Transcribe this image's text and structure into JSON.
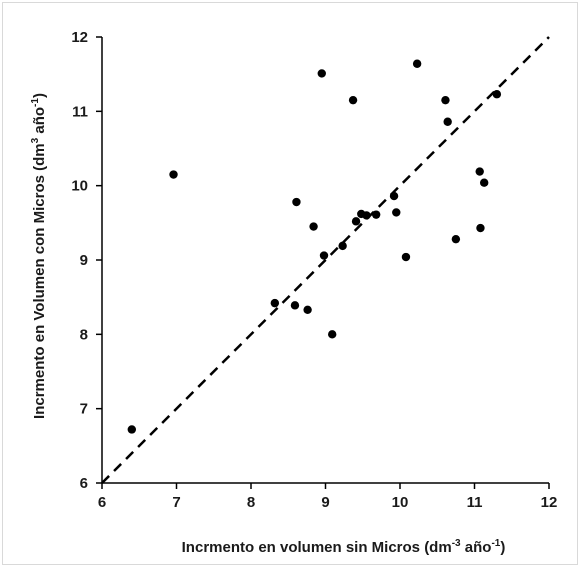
{
  "chart_data": {
    "type": "scatter",
    "title": "",
    "xlabel": {
      "prefix": "Incrmento en volumen sin Micros (dm",
      "sup1": "-3",
      "middle": " año",
      "sup2": "-1",
      "suffix": ")"
    },
    "ylabel": {
      "prefix": "Incrmento en Volumen con Micros (dm",
      "sup1": "3",
      "middle": "  año",
      "sup2": "-1",
      "suffix": ")"
    },
    "xlim": [
      6,
      12
    ],
    "ylim": [
      6,
      12
    ],
    "xticks": [
      "6",
      "7",
      "8",
      "9",
      "10",
      "11",
      "12"
    ],
    "yticks": [
      "6",
      "7",
      "8",
      "9",
      "10",
      "11",
      "12"
    ],
    "grid": false,
    "legend": "none",
    "reference_line": {
      "style": "dashed",
      "x": [
        6,
        12
      ],
      "y": [
        6,
        12
      ]
    },
    "points": [
      {
        "x": 6.4,
        "y": 6.72
      },
      {
        "x": 6.96,
        "y": 10.15
      },
      {
        "x": 8.32,
        "y": 8.42
      },
      {
        "x": 8.59,
        "y": 8.39
      },
      {
        "x": 8.61,
        "y": 9.78
      },
      {
        "x": 8.76,
        "y": 8.33
      },
      {
        "x": 8.84,
        "y": 9.45
      },
      {
        "x": 8.95,
        "y": 11.51
      },
      {
        "x": 8.98,
        "y": 9.06
      },
      {
        "x": 9.09,
        "y": 8.0
      },
      {
        "x": 9.23,
        "y": 9.19
      },
      {
        "x": 9.37,
        "y": 11.15
      },
      {
        "x": 9.41,
        "y": 9.52
      },
      {
        "x": 9.48,
        "y": 9.62
      },
      {
        "x": 9.55,
        "y": 9.6
      },
      {
        "x": 9.68,
        "y": 9.61
      },
      {
        "x": 9.92,
        "y": 9.86
      },
      {
        "x": 9.95,
        "y": 9.64
      },
      {
        "x": 10.08,
        "y": 9.04
      },
      {
        "x": 10.23,
        "y": 11.64
      },
      {
        "x": 10.61,
        "y": 11.15
      },
      {
        "x": 10.64,
        "y": 10.86
      },
      {
        "x": 10.75,
        "y": 9.28
      },
      {
        "x": 11.07,
        "y": 10.19
      },
      {
        "x": 11.08,
        "y": 9.43
      },
      {
        "x": 11.13,
        "y": 10.04
      },
      {
        "x": 11.3,
        "y": 11.23
      }
    ],
    "colors": {
      "points": "#000000",
      "axes": "#000000",
      "line": "#000000"
    }
  }
}
